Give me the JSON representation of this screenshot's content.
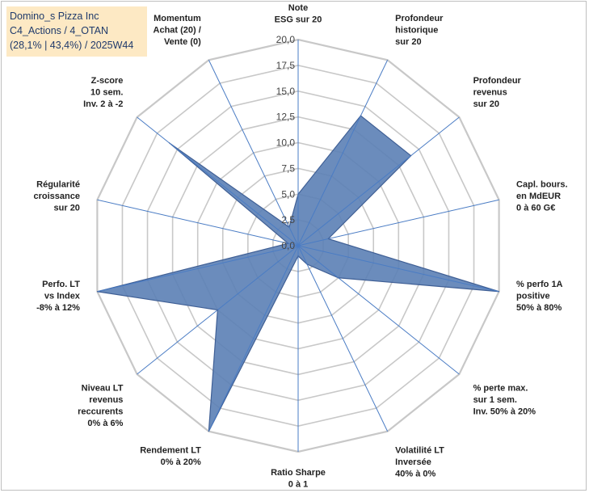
{
  "info": {
    "line1": "Domino_s Pizza Inc",
    "line2": "C4_Actions / 4_OTAN",
    "line3": "(28,1% | 43,4%) / 2025W44"
  },
  "chart_data": {
    "type": "radar",
    "rmin": 0,
    "rmax": 20,
    "ticks": [
      "0,0",
      "2,5",
      "5,0",
      "7,5",
      "10,0",
      "12,5",
      "15,0",
      "17,5",
      "20,0"
    ],
    "axes": [
      {
        "label": [
          "Note",
          "ESG sur 20"
        ],
        "value": 5
      },
      {
        "label": [
          "Profondeur",
          "historique",
          "sur 20"
        ],
        "value": 14
      },
      {
        "label": [
          "Profondeur",
          "revenus",
          "sur 20"
        ],
        "value": 14
      },
      {
        "label": [
          "Capl. bours.",
          "en MdEUR",
          "0 à 60 G€"
        ],
        "value": 3
      },
      {
        "label": [
          "% perfo 1A",
          "positive",
          "50% à 80%"
        ],
        "value": 20
      },
      {
        "label": [
          "% perte max.",
          "sur 1 sem.",
          "Inv. 50% à 20%"
        ],
        "value": 5
      },
      {
        "label": [
          "Volatilité LT",
          "Inversée",
          "40% à 0%"
        ],
        "value": 2
      },
      {
        "label": [
          "Ratio Sharpe",
          "0 à 1"
        ],
        "value": 1
      },
      {
        "label": [
          "Rendement LT",
          "0% à 20%"
        ],
        "value": 20
      },
      {
        "label": [
          "Niveau LT",
          "revenus",
          "reccurents",
          "0% à 6%"
        ],
        "value": 10
      },
      {
        "label": [
          "Perfo. LT",
          "vs Index",
          "-8% à 12%"
        ],
        "value": 20
      },
      {
        "label": [
          "Régularité",
          "croissance",
          "sur 20"
        ],
        "value": 1
      },
      {
        "label": [
          "Z-score",
          "10 sem.",
          "Inv. 2 à -2"
        ],
        "value": 16
      },
      {
        "label": [
          "Momentum",
          "Achat (20) /",
          "Vente (0)"
        ],
        "value": 2
      }
    ],
    "colors": {
      "fill": "#5b7fb5",
      "stroke": "#3f5f95",
      "grid": "#c8c8c8",
      "spoke": "#4a7cc4"
    }
  }
}
